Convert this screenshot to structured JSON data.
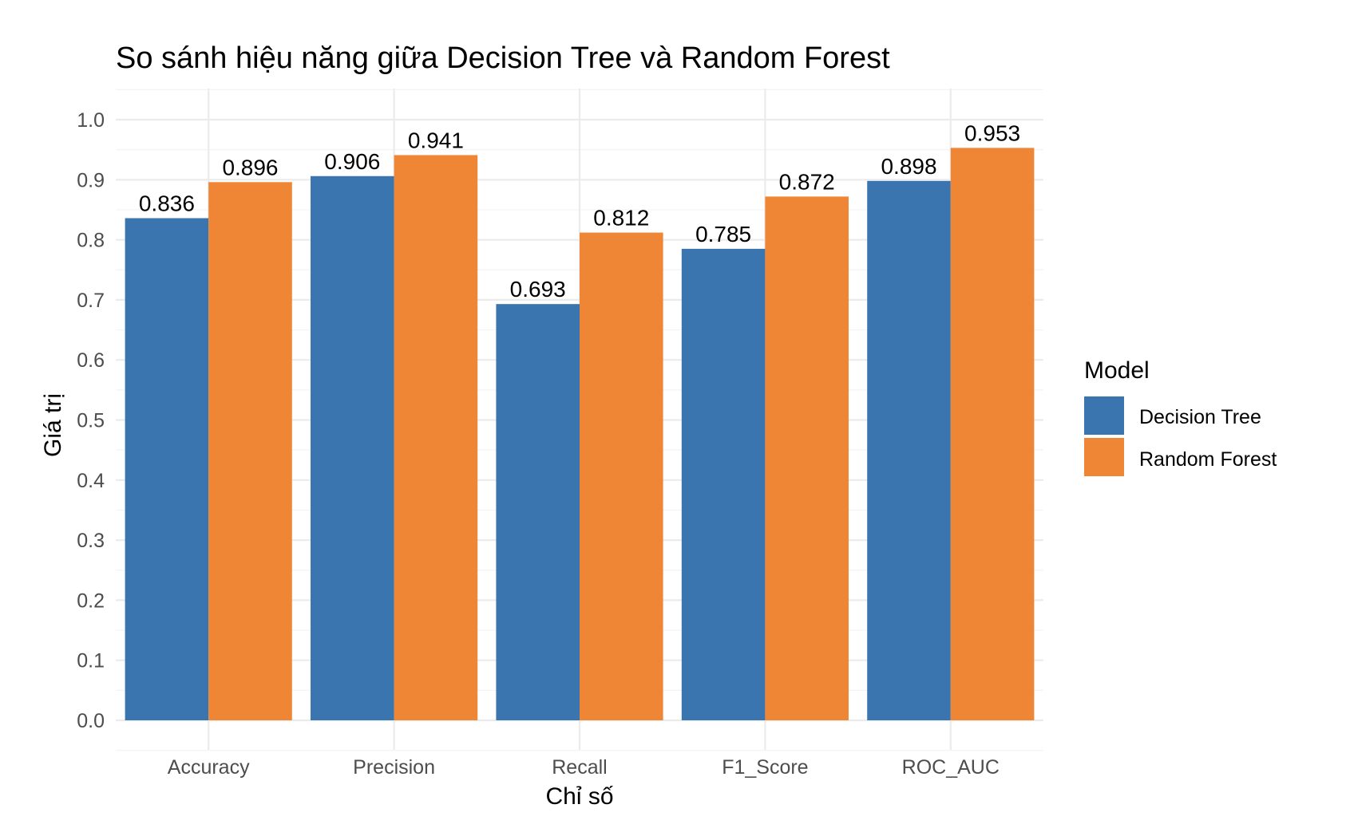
{
  "chart_data": {
    "type": "bar",
    "title": "So sánh hiệu năng giữa Decision Tree và Random Forest",
    "xlabel": "Chỉ số",
    "ylabel": "Giá trị",
    "categories": [
      "Accuracy",
      "Precision",
      "Recall",
      "F1_Score",
      "ROC_AUC"
    ],
    "series": [
      {
        "name": "Decision Tree",
        "color": "#3b75af",
        "values": [
          0.836,
          0.906,
          0.693,
          0.785,
          0.898
        ]
      },
      {
        "name": "Random Forest",
        "color": "#ef8636",
        "values": [
          0.896,
          0.941,
          0.812,
          0.872,
          0.953
        ]
      }
    ],
    "ylim": [
      0,
      1.0
    ],
    "yticks": [
      "0.0",
      "0.1",
      "0.2",
      "0.3",
      "0.4",
      "0.5",
      "0.6",
      "0.7",
      "0.8",
      "0.9",
      "1.0"
    ],
    "legend_title": "Model",
    "legend_position": "right",
    "grid": true,
    "data_labels": true
  }
}
